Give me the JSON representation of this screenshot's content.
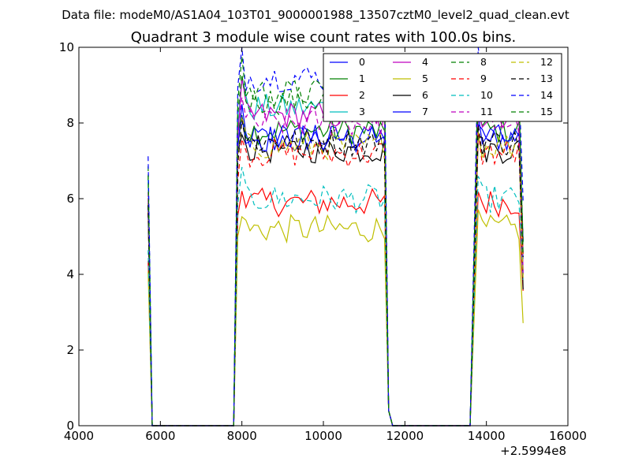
{
  "chart_data": {
    "type": "line",
    "supertitle": "Data file: modeM0/AS1A04_103T01_9000001988_13507cztM0_level2_quad_clean.evt",
    "title": "Quadrant 3 module wise count rates with 100.0s bins.",
    "xlabel": "",
    "ylabel": "",
    "xlim": [
      4000,
      16000
    ],
    "ylim": [
      0,
      10
    ],
    "x_ticks": [
      4000,
      6000,
      8000,
      10000,
      12000,
      14000,
      16000
    ],
    "x_tick_labels": [
      "4000",
      "6000",
      "8000",
      "10000",
      "12000",
      "14000",
      "16000"
    ],
    "y_ticks": [
      0,
      2,
      4,
      6,
      8,
      10
    ],
    "y_tick_labels": [
      "0",
      "2",
      "4",
      "6",
      "8",
      "10"
    ],
    "x_offset_label": "+2.5994e8",
    "grid": false,
    "legend": {
      "placement": "top-right",
      "columns": 4
    },
    "series": [
      {
        "name": "0",
        "color": "#0000ff",
        "dash": "solid",
        "level": 7.6
      },
      {
        "name": "1",
        "color": "#008000",
        "dash": "solid",
        "level": 7.8
      },
      {
        "name": "2",
        "color": "#ff0000",
        "dash": "solid",
        "level": 5.9
      },
      {
        "name": "3",
        "color": "#00bfbf",
        "dash": "solid",
        "level": 8.4
      },
      {
        "name": "4",
        "color": "#bf00bf",
        "dash": "solid",
        "level": 8.2
      },
      {
        "name": "5",
        "color": "#bfbf00",
        "dash": "solid",
        "level": 5.2
      },
      {
        "name": "6",
        "color": "#000000",
        "dash": "solid",
        "level": 7.3
      },
      {
        "name": "7",
        "color": "#0000ff",
        "dash": "solid",
        "level": 7.6
      },
      {
        "name": "8",
        "color": "#008000",
        "dash": "dashed",
        "level": 8.6
      },
      {
        "name": "9",
        "color": "#ff0000",
        "dash": "dashed",
        "level": 7.2
      },
      {
        "name": "10",
        "color": "#00bfbf",
        "dash": "dashed",
        "level": 6.0
      },
      {
        "name": "11",
        "color": "#bf00bf",
        "dash": "dashed",
        "level": 8.0
      },
      {
        "name": "12",
        "color": "#bfbf00",
        "dash": "dashed",
        "level": 7.4
      },
      {
        "name": "13",
        "color": "#000000",
        "dash": "dashed",
        "level": 7.5
      },
      {
        "name": "14",
        "color": "#0000ff",
        "dash": "dashed",
        "level": 9.2
      },
      {
        "name": "15",
        "color": "#008000",
        "dash": "dashed",
        "level": 8.8
      }
    ],
    "time_windows": [
      {
        "start": 5700,
        "end": 5700,
        "count": 1
      },
      {
        "start": 7900,
        "end": 11500,
        "count": 37
      },
      {
        "start": 13800,
        "end": 14900,
        "count": 12
      }
    ],
    "zero_points": [
      5800,
      7800,
      11700,
      13600
    ]
  }
}
